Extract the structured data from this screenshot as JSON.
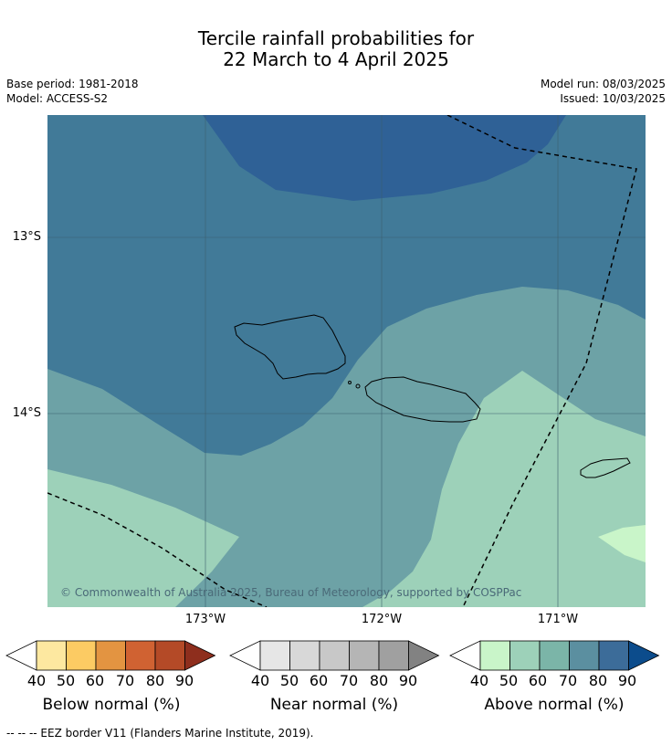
{
  "header": {
    "title_line1": "Tercile rainfall probabilities for",
    "title_line2": "22 March to 4 April 2025",
    "base_period": "Base period: 1981-2018",
    "model": "Model: ACCESS-S2",
    "model_run": "Model run: 08/03/2025",
    "issued": "Issued: 10/03/2025"
  },
  "map": {
    "lat_labels": [
      "13°S",
      "14°S"
    ],
    "lon_labels": [
      "173°W",
      "172°W",
      "171°W"
    ],
    "copyright": "© Commonwealth of Australia 2025, Bureau of Meteorology, supported by COSPPac",
    "colors": {
      "above_40_50": "#c9f5c9",
      "above_50_60": "#9dd1b9",
      "above_60_70": "#6da2a6",
      "above_70_80": "#417a98",
      "above_80_90": "#2f6196",
      "above_90": "#0c4c8c",
      "gridline": "#3b5f6e",
      "coast": "#000000",
      "eez": "#000000"
    }
  },
  "colorbars": {
    "ticks": [
      "40",
      "50",
      "60",
      "70",
      "80",
      "90"
    ],
    "below": {
      "title": "Below normal (%)",
      "colors": [
        "#ffffff",
        "#fde8a0",
        "#fccb63",
        "#e39441",
        "#d06232",
        "#b44a27",
        "#8e2e1d"
      ]
    },
    "near": {
      "title": "Near normal (%)",
      "colors": [
        "#ffffff",
        "#e6e6e6",
        "#d8d8d8",
        "#c8c8c8",
        "#b5b5b5",
        "#a0a0a0",
        "#828282"
      ]
    },
    "above": {
      "title": "Above normal (%)",
      "colors": [
        "#ffffff",
        "#c9f5c9",
        "#9dd1b9",
        "#7bb5a8",
        "#5b8fa0",
        "#3c6c99",
        "#0c4c8c"
      ]
    }
  },
  "footer": {
    "eez_legend": "-- -- -- EEZ border V11 (Flanders Marine Institute, 2019)."
  }
}
